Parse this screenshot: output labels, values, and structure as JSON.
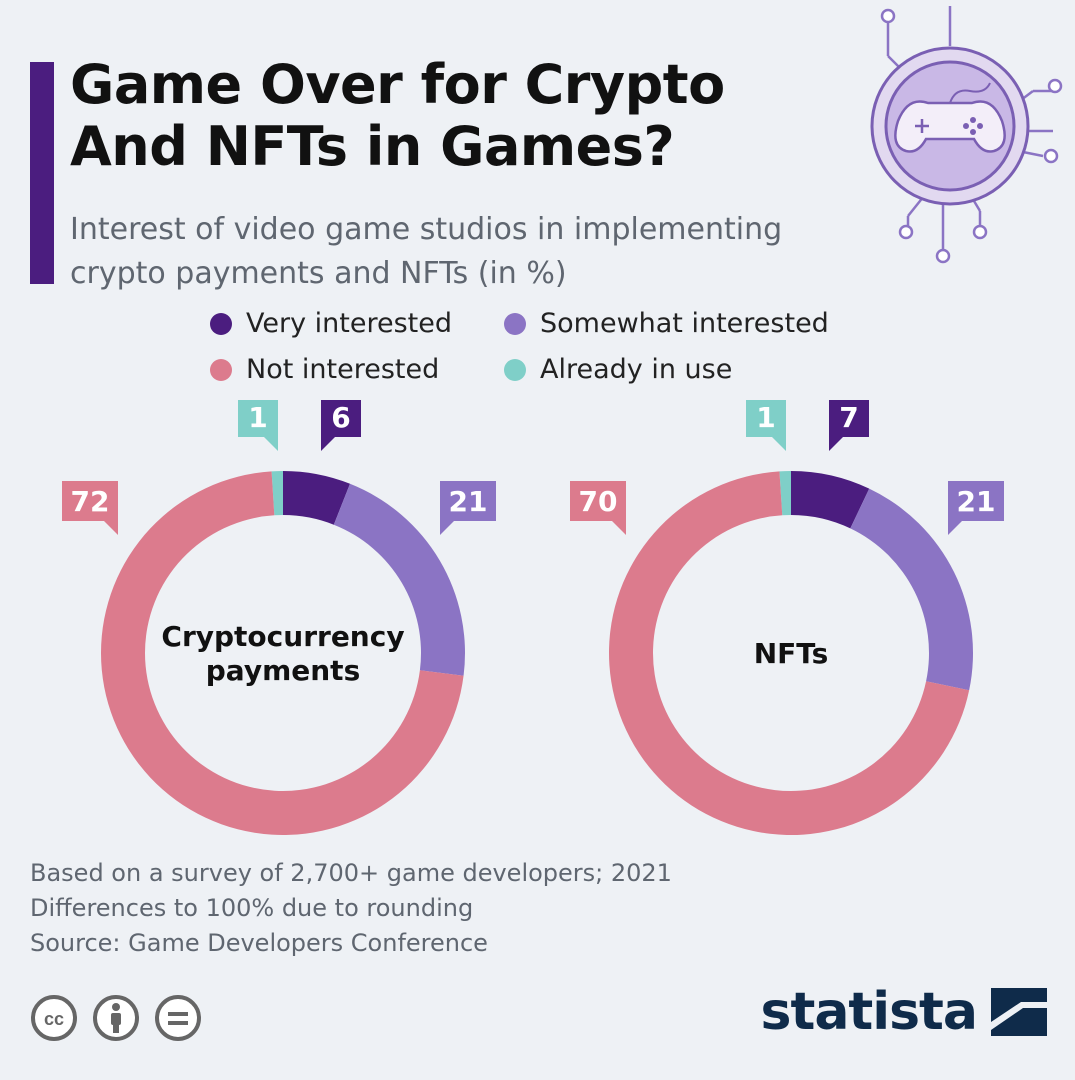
{
  "header": {
    "title_line1": "Game Over for Crypto",
    "title_line2": "And NFTs in Games?",
    "subtitle_line1": "Interest of video game studios in implementing",
    "subtitle_line2": "crypto payments and NFTs (in %)"
  },
  "legend": {
    "items": [
      {
        "label": "Very interested",
        "color": "#4b1d7f"
      },
      {
        "label": "Somewhat interested",
        "color": "#8b74c4"
      },
      {
        "label": "Not interested",
        "color": "#dc7b8d"
      },
      {
        "label": "Already in use",
        "color": "#7fcfc8"
      }
    ]
  },
  "chart_data": [
    {
      "type": "pie",
      "title": "Cryptocurrency payments",
      "center_label_lines": [
        "Cryptocurrency",
        "payments"
      ],
      "categories": [
        "Already in use",
        "Very interested",
        "Somewhat interested",
        "Not interested"
      ],
      "values": [
        1,
        6,
        21,
        72
      ],
      "value_labels": [
        "1",
        "6",
        "21",
        "72"
      ],
      "colors": [
        "#7fcfc8",
        "#4b1d7f",
        "#8b74c4",
        "#dc7b8d"
      ],
      "unit": "%"
    },
    {
      "type": "pie",
      "title": "NFTs",
      "center_label_lines": [
        "NFTs"
      ],
      "categories": [
        "Already in use",
        "Very interested",
        "Somewhat interested",
        "Not interested"
      ],
      "values": [
        1,
        7,
        21,
        70
      ],
      "value_labels": [
        "1",
        "7",
        "21",
        "70"
      ],
      "colors": [
        "#7fcfc8",
        "#4b1d7f",
        "#8b74c4",
        "#dc7b8d"
      ],
      "unit": "%"
    }
  ],
  "footnotes": {
    "note1": "Based on a survey of 2,700+ game developers; 2021",
    "note2": "Differences to 100% due to rounding",
    "source": "Source: Game Developers Conference"
  },
  "brand": {
    "name": "statista"
  },
  "icons": [
    "cc-icon",
    "person-icon",
    "equals-icon",
    "gamepad-icon",
    "statista-logo-icon"
  ]
}
